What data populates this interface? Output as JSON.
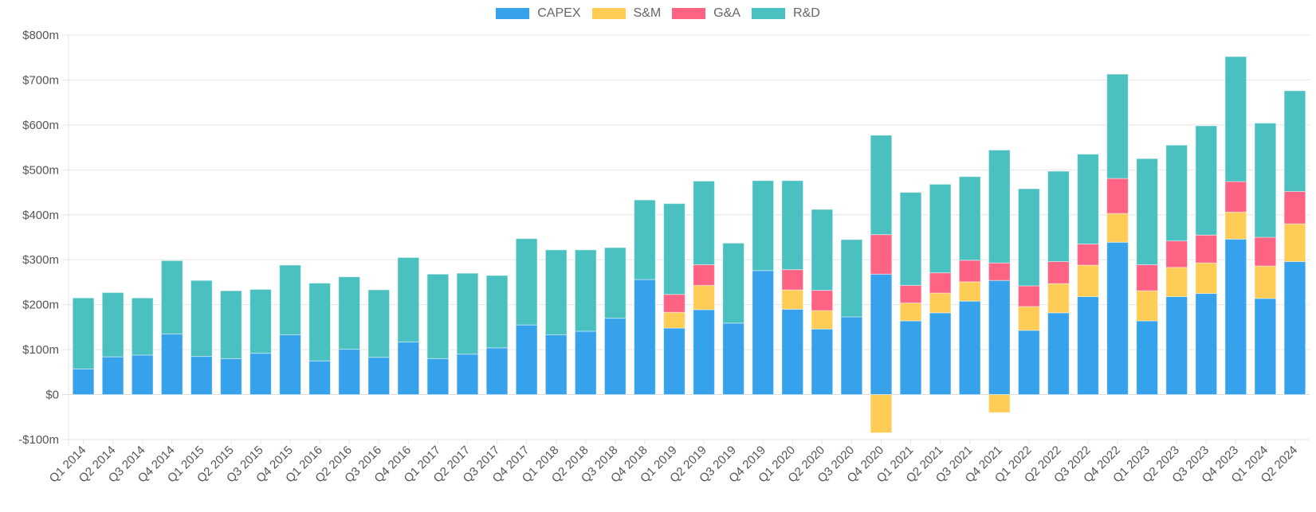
{
  "chart_data": {
    "type": "bar",
    "stacked": true,
    "title": "",
    "xlabel": "",
    "ylabel": "",
    "ylim": [
      -100,
      800
    ],
    "yticks": [
      -100,
      0,
      100,
      200,
      300,
      400,
      500,
      600,
      700,
      800
    ],
    "ytick_labels": [
      "-$100m",
      "$0",
      "$100m",
      "$200m",
      "$300m",
      "$400m",
      "$500m",
      "$600m",
      "$700m",
      "$800m"
    ],
    "grid": true,
    "legend_position": "top-center",
    "categories": [
      "Q1 2014",
      "Q2 2014",
      "Q3 2014",
      "Q4 2014",
      "Q1 2015",
      "Q2 2015",
      "Q3 2015",
      "Q4 2015",
      "Q1 2016",
      "Q2 2016",
      "Q3 2016",
      "Q4 2016",
      "Q1 2017",
      "Q2 2017",
      "Q3 2017",
      "Q4 2017",
      "Q1 2018",
      "Q2 2018",
      "Q3 2018",
      "Q4 2018",
      "Q1 2019",
      "Q2 2019",
      "Q3 2019",
      "Q4 2019",
      "Q1 2020",
      "Q2 2020",
      "Q3 2020",
      "Q4 2020",
      "Q1 2021",
      "Q2 2021",
      "Q3 2021",
      "Q4 2021",
      "Q1 2022",
      "Q2 2022",
      "Q3 2022",
      "Q4 2022",
      "Q1 2023",
      "Q2 2023",
      "Q3 2023",
      "Q4 2023",
      "Q1 2024",
      "Q2 2024"
    ],
    "series": [
      {
        "name": "CAPEX",
        "color": "#36a2eb",
        "values": [
          57,
          84,
          88,
          135,
          85,
          80,
          92,
          133,
          75,
          101,
          83,
          117,
          80,
          90,
          104,
          155,
          133,
          141,
          170,
          256,
          148,
          189,
          159,
          276,
          190,
          146,
          173,
          268,
          164,
          182,
          208,
          254,
          143,
          182,
          218,
          339,
          164,
          218,
          225,
          346,
          214,
          296
        ]
      },
      {
        "name": "S&M",
        "color": "#ffcd56",
        "values": [
          0,
          0,
          0,
          0,
          0,
          0,
          0,
          0,
          0,
          0,
          0,
          0,
          0,
          0,
          0,
          0,
          0,
          0,
          0,
          0,
          35,
          54,
          0,
          0,
          43,
          41,
          0,
          -85,
          40,
          44,
          43,
          -40,
          53,
          65,
          70,
          64,
          67,
          65,
          68,
          60,
          72,
          84
        ]
      },
      {
        "name": "G&A",
        "color": "#ff6384",
        "values": [
          0,
          0,
          0,
          0,
          0,
          0,
          0,
          0,
          0,
          0,
          0,
          0,
          0,
          0,
          0,
          0,
          0,
          0,
          0,
          0,
          40,
          46,
          0,
          0,
          45,
          45,
          0,
          88,
          39,
          45,
          48,
          39,
          46,
          49,
          47,
          78,
          58,
          59,
          62,
          68,
          64,
          72
        ]
      },
      {
        "name": "R&D",
        "color": "#4bc0c0",
        "values": [
          158,
          143,
          127,
          163,
          169,
          151,
          142,
          155,
          173,
          161,
          150,
          188,
          188,
          180,
          161,
          192,
          189,
          181,
          157,
          177,
          202,
          186,
          178,
          200,
          198,
          180,
          172,
          221,
          207,
          197,
          186,
          251,
          216,
          201,
          200,
          232,
          236,
          213,
          243,
          278,
          254,
          224
        ]
      }
    ]
  }
}
